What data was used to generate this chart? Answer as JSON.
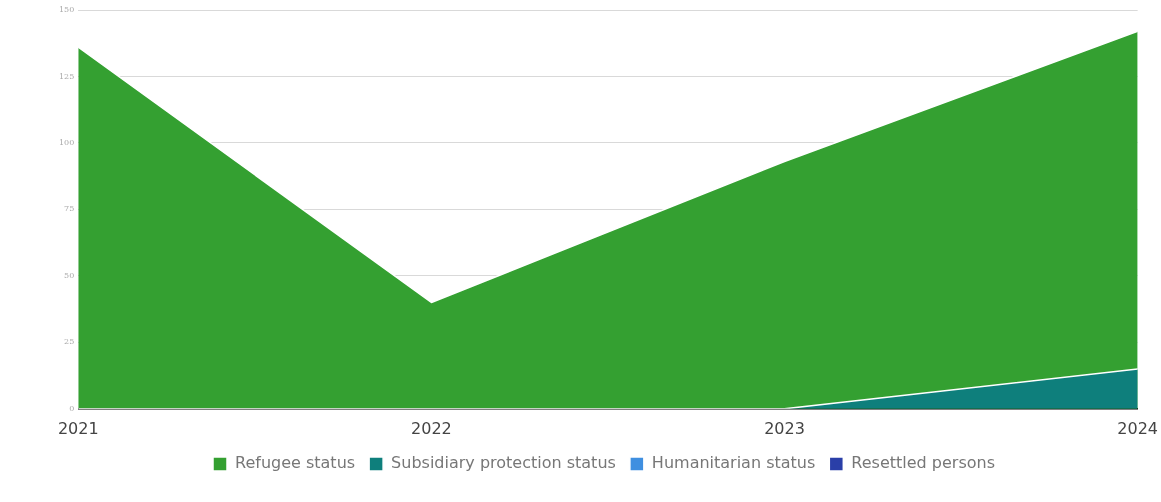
{
  "chart_data": {
    "type": "area",
    "categories": [
      "2021",
      "2022",
      "2023",
      "2024"
    ],
    "series": [
      {
        "name": "Refugee status",
        "color": "#34a031",
        "values": [
          136,
          40,
          93,
          142
        ]
      },
      {
        "name": "Subsidiary protection status",
        "color": "#0e7f7c",
        "values": [
          0,
          0,
          0,
          15
        ]
      },
      {
        "name": "Humanitarian status",
        "color": "#3f8fe0",
        "values": [
          null,
          null,
          null,
          null
        ]
      },
      {
        "name": "Resettled persons",
        "color": "#2a3fa8",
        "values": [
          null,
          null,
          null,
          null
        ]
      }
    ],
    "ylim": [
      0,
      150
    ],
    "yticks": [
      0,
      25,
      50,
      75,
      100,
      125,
      150
    ],
    "grid": "y",
    "legend": "bottom"
  }
}
